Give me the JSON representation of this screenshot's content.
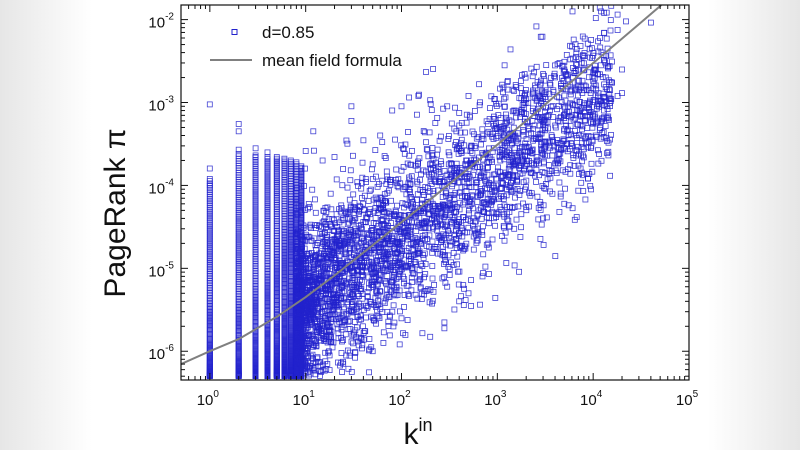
{
  "chart_data": {
    "type": "scatter",
    "title": "",
    "xlabel": {
      "base": "k",
      "superscript": "in"
    },
    "ylabel": "PageRank π",
    "x_scale": "log",
    "y_scale": "log",
    "xlim": [
      0.5,
      100000
    ],
    "ylim": [
      4.5e-07,
      0.015
    ],
    "x_ticks": [
      {
        "value": 1,
        "base": "10",
        "exp": "0"
      },
      {
        "value": 10,
        "base": "10",
        "exp": "1"
      },
      {
        "value": 100,
        "base": "10",
        "exp": "2"
      },
      {
        "value": 1000,
        "base": "10",
        "exp": "3"
      },
      {
        "value": 10000,
        "base": "10",
        "exp": "4"
      },
      {
        "value": 100000,
        "base": "10",
        "exp": "5"
      }
    ],
    "y_ticks": [
      {
        "value": 1e-06,
        "base": "10",
        "exp": "-6"
      },
      {
        "value": 1e-05,
        "base": "10",
        "exp": "-5"
      },
      {
        "value": 0.0001,
        "base": "10",
        "exp": "-4"
      },
      {
        "value": 0.001,
        "base": "10",
        "exp": "-3"
      },
      {
        "value": 0.01,
        "base": "10",
        "exp": "-2"
      }
    ],
    "grid": false,
    "legend_position": "top-left",
    "series": [
      {
        "name": "d=0.85",
        "kind": "scatter",
        "marker": "open-square",
        "color": "#2222cc",
        "x_range": [
          1,
          40000
        ],
        "y_floor": 5e-07,
        "points": [
          [
            1,
            0.00095
          ],
          [
            1,
            0.00016
          ],
          [
            1,
            0.0001
          ],
          [
            2,
            0.00055
          ],
          [
            2,
            0.00045
          ],
          [
            2,
            0.00027
          ],
          [
            3,
            0.00028
          ],
          [
            3,
            0.00022
          ],
          [
            4,
            0.00025
          ],
          [
            5,
            0.00022
          ],
          [
            6,
            0.00021
          ],
          [
            7,
            0.0002
          ],
          [
            8,
            0.00019
          ],
          [
            10,
            0.00026
          ],
          [
            12,
            0.00045
          ],
          [
            15,
            0.0002
          ],
          [
            20,
            0.00022
          ],
          [
            30,
            0.0009
          ],
          [
            30,
            0.0006
          ],
          [
            40,
            0.00035
          ],
          [
            50,
            0.00018
          ],
          [
            60,
            0.0004
          ],
          [
            80,
            0.0008
          ],
          [
            100,
            0.0009
          ],
          [
            120,
            0.00115
          ],
          [
            150,
            0.0012
          ],
          [
            200,
            0.00016
          ],
          [
            300,
            0.0009
          ],
          [
            400,
            0.00075
          ],
          [
            500,
            0.0012
          ],
          [
            600,
            0.0002
          ],
          [
            800,
            0.00055
          ],
          [
            1000,
            0.0005
          ],
          [
            1200,
            0.0003
          ],
          [
            1500,
            0.0008
          ],
          [
            2000,
            0.0011
          ],
          [
            2500,
            0.0015
          ],
          [
            3000,
            0.0022
          ],
          [
            4000,
            0.0028
          ],
          [
            3000,
            0.0011
          ],
          [
            3000,
            0.0009
          ],
          [
            5000,
            0.0025
          ],
          [
            8000,
            0.0025
          ],
          [
            10000,
            0.0023
          ],
          [
            10000,
            0.0018
          ],
          [
            15000,
            0.0011
          ],
          [
            18000,
            0.0012
          ],
          [
            20000,
            0.0025
          ],
          [
            18000,
            0.0075
          ],
          [
            18000,
            0.0115
          ],
          [
            22000,
            0.0095
          ],
          [
            40000,
            0.0092
          ],
          [
            20000,
            0.0013
          ],
          [
            200,
            5.5e-06
          ],
          [
            300,
            6e-06
          ],
          [
            500,
            5e-06
          ],
          [
            1000,
            4.5e-05
          ],
          [
            2000,
            5.5e-05
          ],
          [
            700,
            8e-06
          ],
          [
            100,
            2.5e-06
          ],
          [
            50,
            1e-06
          ],
          [
            400,
            4e-06
          ],
          [
            1500,
            3e-05
          ],
          [
            3000,
            4e-05
          ],
          [
            5000,
            6e-05
          ]
        ]
      },
      {
        "name": "mean field formula",
        "kind": "line",
        "color": "#808080",
        "x": [
          0.5,
          1,
          2,
          5,
          10,
          20,
          50,
          100,
          200,
          500,
          1000,
          2000,
          5000,
          10000,
          20000,
          50000,
          100000
        ],
        "y": [
          7e-07,
          1e-06,
          1.4e-06,
          2.6e-06,
          4.5e-06,
          8.2e-06,
          1.9e-05,
          3.6e-05,
          6.8e-05,
          0.00016,
          0.00031,
          0.0006,
          0.0015,
          0.003,
          0.0059,
          0.0146,
          0.035
        ]
      }
    ]
  }
}
